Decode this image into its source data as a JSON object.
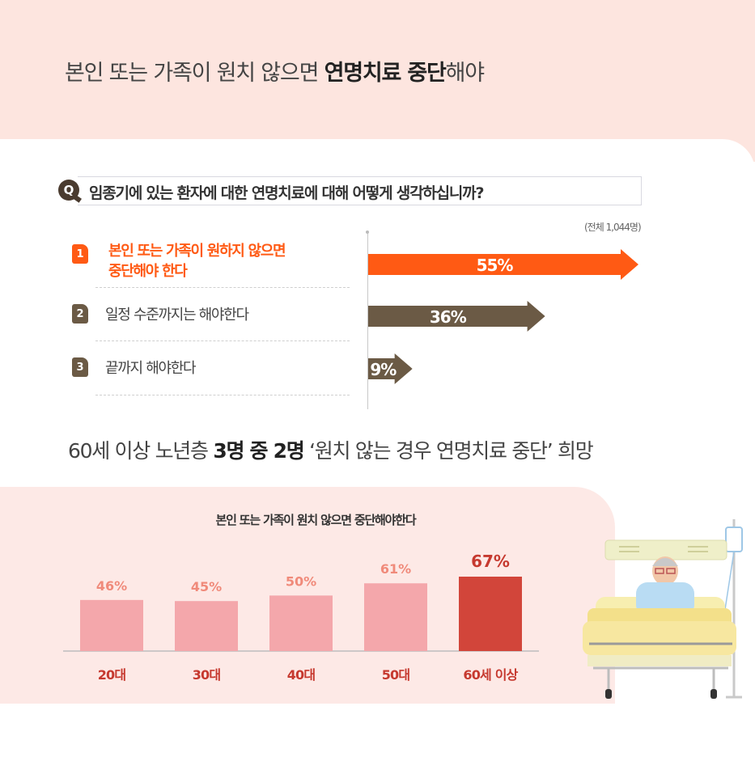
{
  "headline": {
    "prefix": "본인 또는 가족이 원치 않으면 ",
    "bold": "연명치료 중단",
    "suffix": "해야"
  },
  "question": {
    "icon": "Q",
    "text": "임종기에 있는 환자에 대한 연명치료에 대해 어떻게 생각하십니까?",
    "total_note": "(전체 1,044명)"
  },
  "options": [
    {
      "num": "1",
      "label_line1": "본인 또는 가족이 원하지 않으면",
      "label_line2": "중단해야 한다"
    },
    {
      "num": "2",
      "label_line1": "일정 수준까지는 해야한다",
      "label_line2": ""
    },
    {
      "num": "3",
      "label_line1": "끝까지 해야한다",
      "label_line2": ""
    }
  ],
  "subhead": {
    "prefix": "60세 이상 노년층 ",
    "bold": "3명 중 2명",
    "suffix": " ‘원치 않는 경우 연명치료 중단’ 희망"
  },
  "age_panel_title": "본인 또는 가족이 원치 않으면 중단해야한다",
  "colors": {
    "accent": "#ff5a14",
    "brown": "#6b5a45",
    "pink_bar": "#f4a7ab",
    "red_bar": "#d2453a",
    "pink_label": "#f08a7a",
    "red_label": "#c6392f"
  },
  "chart_data": [
    {
      "type": "bar",
      "orientation": "horizontal",
      "categories": [
        "본인 또는 가족이 원하지 않으면 중단해야 한다",
        "일정 수준까지는 해야한다",
        "끝까지 해야한다"
      ],
      "values": [
        55,
        36,
        9
      ],
      "value_labels": [
        "55%",
        "36%",
        "9%"
      ],
      "unit": "%",
      "title": "임종기에 있는 환자에 대한 연명치료에 대해 어떻게 생각하십니까?",
      "note": "(전체 1,044명)"
    },
    {
      "type": "bar",
      "title": "본인 또는 가족이 원치 않으면 중단해야한다",
      "categories": [
        "20대",
        "30대",
        "40대",
        "50대",
        "60세 이상"
      ],
      "values": [
        46,
        45,
        50,
        61,
        67
      ],
      "value_labels": [
        "46%",
        "45%",
        "50%",
        "61%",
        "67%"
      ],
      "unit": "%",
      "highlight": "60세 이상"
    }
  ]
}
